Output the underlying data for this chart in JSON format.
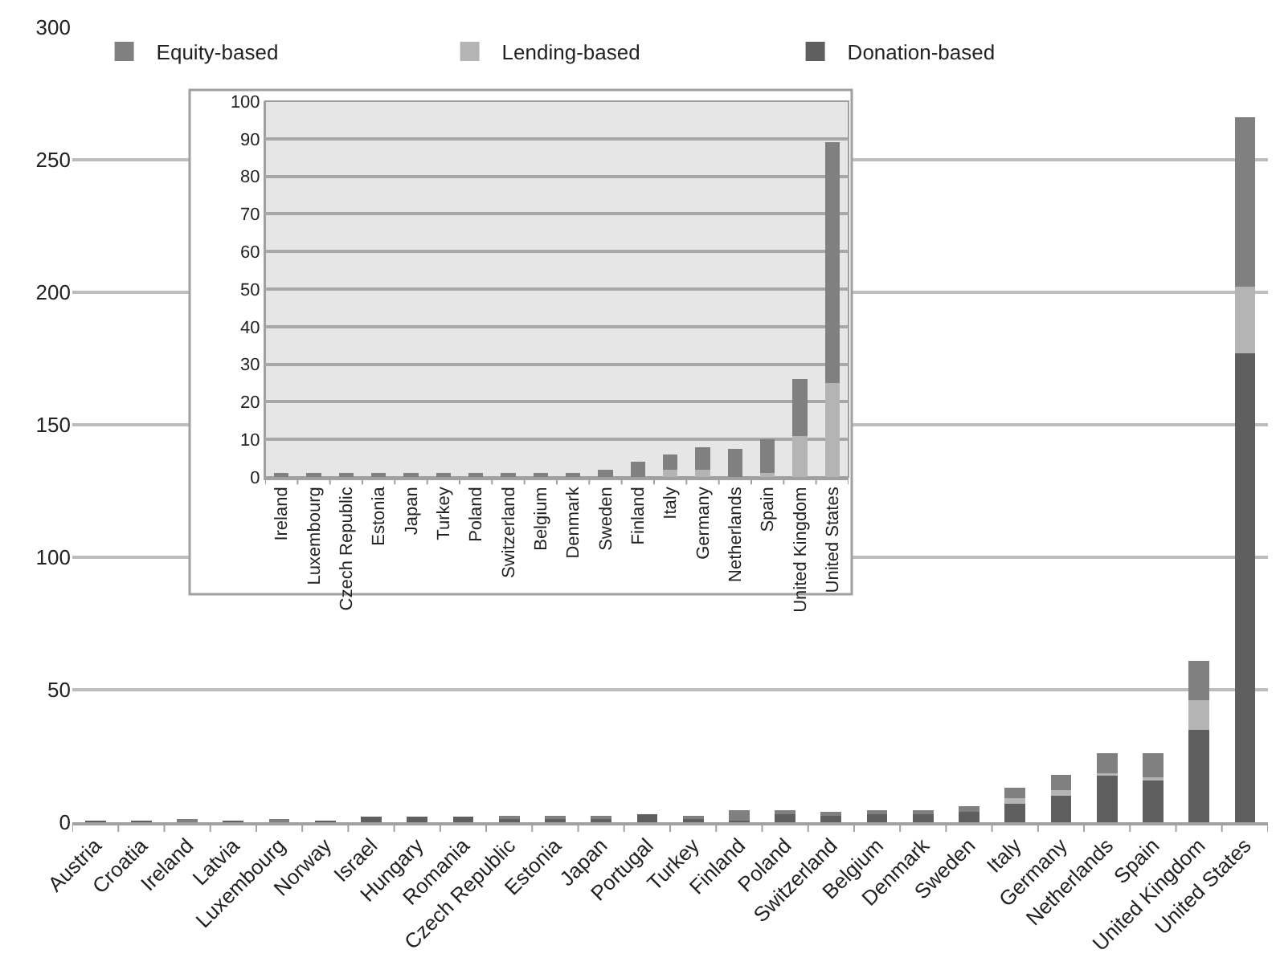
{
  "chart_data": [
    {
      "type": "bar",
      "stacked": true,
      "categories": [
        "Austria",
        "Croatia",
        "Ireland",
        "Latvia",
        "Luxembourg",
        "Norway",
        "Israel",
        "Hungary",
        "Romania",
        "Czech Republic",
        "Estonia",
        "Japan",
        "Portugal",
        "Turkey",
        "Finland",
        "Poland",
        "Switzerland",
        "Belgium",
        "Denmark",
        "Sweden",
        "Italy",
        "Germany",
        "Netherlands",
        "Spain",
        "United Kingdom",
        "United States"
      ],
      "series": [
        {
          "name": "Donation-based",
          "color": "#5f5f5f",
          "values": [
            0.5,
            0.5,
            0,
            0.5,
            0,
            0.5,
            2,
            2,
            2,
            1.5,
            1.5,
            1.5,
            3,
            1.5,
            0.5,
            3.5,
            3,
            3.5,
            3.5,
            4,
            7,
            10,
            18,
            16,
            35,
            177
          ]
        },
        {
          "name": "Lending-based",
          "color": "#b4b4b4",
          "values": [
            0,
            0,
            0,
            0,
            0,
            0,
            0,
            0,
            0,
            0,
            0,
            0,
            0,
            0,
            0,
            0,
            0,
            0,
            0,
            0,
            2,
            2,
            0.5,
            1,
            11,
            25
          ]
        },
        {
          "name": "Equity-based",
          "color": "#808080",
          "values": [
            0,
            0,
            1,
            0,
            1,
            0,
            0,
            0,
            0,
            1,
            1,
            1,
            0,
            1,
            4,
            1,
            1,
            1,
            1,
            2,
            4,
            6,
            7.5,
            9,
            15,
            64
          ]
        }
      ],
      "ylim": [
        0,
        300
      ],
      "yticks": [
        0,
        50,
        100,
        150,
        200,
        250,
        300
      ],
      "grid": "y",
      "legend": "top"
    },
    {
      "type": "bar",
      "stacked": true,
      "categories": [
        "Ireland",
        "Luxembourg",
        "Czech Republic",
        "Estonia",
        "Japan",
        "Turkey",
        "Poland",
        "Switzerland",
        "Belgium",
        "Denmark",
        "Sweden",
        "Finland",
        "Italy",
        "Germany",
        "Netherlands",
        "Spain",
        "United Kingdom",
        "United States"
      ],
      "series": [
        {
          "color": "#b4b4b4",
          "values": [
            0,
            0,
            0,
            0,
            0,
            0,
            0,
            0,
            0,
            0,
            0,
            0,
            2,
            2,
            null,
            1,
            11,
            25
          ]
        },
        {
          "color": "#808080",
          "values": [
            1,
            1,
            1,
            1,
            1,
            1,
            1,
            1,
            1,
            1,
            2,
            4,
            4,
            6,
            7.5,
            9,
            15,
            64
          ]
        }
      ],
      "ylim": [
        0,
        100
      ],
      "yticks": [
        0,
        10,
        20,
        30,
        40,
        50,
        60,
        70,
        80,
        90,
        100
      ],
      "grid": "y",
      "legend": false
    }
  ]
}
